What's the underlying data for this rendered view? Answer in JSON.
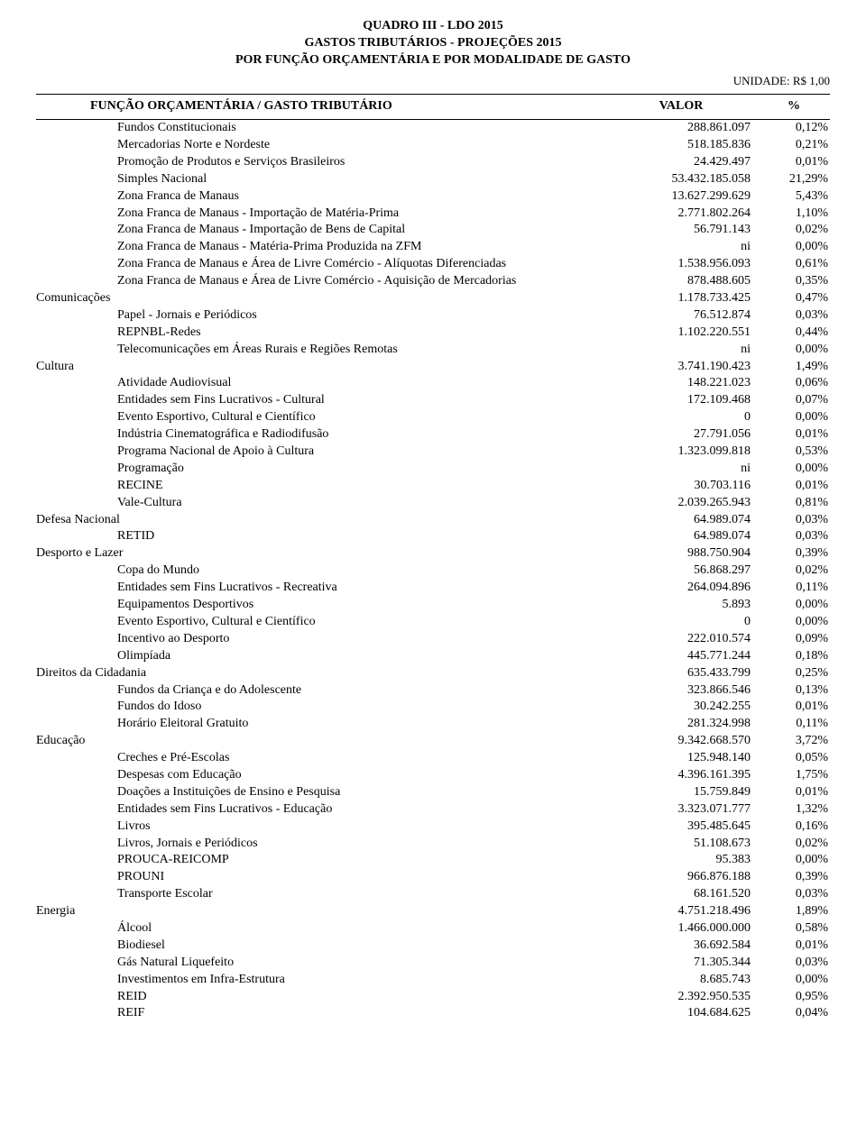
{
  "header": {
    "line1": "QUADRO III - LDO 2015",
    "line2": "GASTOS TRIBUTÁRIOS - PROJEÇÕES 2015",
    "line3": "POR FUNÇÃO ORÇAMENTÁRIA E POR MODALIDADE DE GASTO",
    "unit": "UNIDADE: R$ 1,00"
  },
  "columns": {
    "name": "FUNÇÃO ORÇAMENTÁRIA / GASTO TRIBUTÁRIO",
    "value": "VALOR",
    "pct": "%"
  },
  "rows": [
    {
      "indent": 1,
      "name": "Fundos Constitucionais",
      "value": "288.861.097",
      "pct": "0,12%"
    },
    {
      "indent": 1,
      "name": "Mercadorias Norte e Nordeste",
      "value": "518.185.836",
      "pct": "0,21%"
    },
    {
      "indent": 1,
      "name": "Promoção de Produtos e Serviços Brasileiros",
      "value": "24.429.497",
      "pct": "0,01%"
    },
    {
      "indent": 1,
      "name": "Simples Nacional",
      "value": "53.432.185.058",
      "pct": "21,29%"
    },
    {
      "indent": 1,
      "name": "Zona Franca de Manaus",
      "value": "13.627.299.629",
      "pct": "5,43%"
    },
    {
      "indent": 1,
      "name": "Zona Franca de Manaus  - Importação de Matéria-Prima",
      "value": "2.771.802.264",
      "pct": "1,10%"
    },
    {
      "indent": 1,
      "name": "Zona Franca de Manaus - Importação de Bens de Capital",
      "value": "56.791.143",
      "pct": "0,02%"
    },
    {
      "indent": 1,
      "name": "Zona Franca de Manaus - Matéria-Prima Produzida na ZFM",
      "value": "ni",
      "pct": "0,00%"
    },
    {
      "indent": 1,
      "name": "Zona Franca de Manaus e Área de Livre Comércio - Alíquotas Diferenciadas",
      "value": "1.538.956.093",
      "pct": "0,61%"
    },
    {
      "indent": 1,
      "name": "Zona Franca de Manaus e Área de Livre Comércio - Aquisição de Mercadorias",
      "value": "878.488.605",
      "pct": "0,35%"
    },
    {
      "indent": 0,
      "name": "Comunicações",
      "value": "1.178.733.425",
      "pct": "0,47%"
    },
    {
      "indent": 1,
      "name": "Papel - Jornais e Periódicos",
      "value": "76.512.874",
      "pct": "0,03%"
    },
    {
      "indent": 1,
      "name": "REPNBL-Redes",
      "value": "1.102.220.551",
      "pct": "0,44%"
    },
    {
      "indent": 1,
      "name": "Telecomunicações em Áreas Rurais e Regiões Remotas",
      "value": "ni",
      "pct": "0,00%"
    },
    {
      "indent": 0,
      "name": "Cultura",
      "value": "3.741.190.423",
      "pct": "1,49%"
    },
    {
      "indent": 1,
      "name": "Atividade Audiovisual",
      "value": "148.221.023",
      "pct": "0,06%"
    },
    {
      "indent": 1,
      "name": "Entidades sem Fins Lucrativos - Cultural",
      "value": "172.109.468",
      "pct": "0,07%"
    },
    {
      "indent": 1,
      "name": "Evento Esportivo, Cultural e Científico",
      "value": "0",
      "pct": "0,00%"
    },
    {
      "indent": 1,
      "name": "Indústria Cinematográfica e Radiodifusão",
      "value": "27.791.056",
      "pct": "0,01%"
    },
    {
      "indent": 1,
      "name": "Programa Nacional de Apoio à Cultura",
      "value": "1.323.099.818",
      "pct": "0,53%"
    },
    {
      "indent": 1,
      "name": "Programação",
      "value": "ni",
      "pct": "0,00%"
    },
    {
      "indent": 1,
      "name": "RECINE",
      "value": "30.703.116",
      "pct": "0,01%"
    },
    {
      "indent": 1,
      "name": "Vale-Cultura",
      "value": "2.039.265.943",
      "pct": "0,81%"
    },
    {
      "indent": 0,
      "name": "Defesa Nacional",
      "value": "64.989.074",
      "pct": "0,03%"
    },
    {
      "indent": 1,
      "name": "RETID",
      "value": "64.989.074",
      "pct": "0,03%"
    },
    {
      "indent": 0,
      "name": "Desporto e Lazer",
      "value": "988.750.904",
      "pct": "0,39%"
    },
    {
      "indent": 1,
      "name": "Copa do Mundo",
      "value": "56.868.297",
      "pct": "0,02%"
    },
    {
      "indent": 1,
      "name": "Entidades sem Fins Lucrativos - Recreativa",
      "value": "264.094.896",
      "pct": "0,11%"
    },
    {
      "indent": 1,
      "name": "Equipamentos Desportivos",
      "value": "5.893",
      "pct": "0,00%"
    },
    {
      "indent": 1,
      "name": "Evento Esportivo, Cultural e Científico",
      "value": "0",
      "pct": "0,00%"
    },
    {
      "indent": 1,
      "name": "Incentivo ao Desporto",
      "value": "222.010.574",
      "pct": "0,09%"
    },
    {
      "indent": 1,
      "name": "Olimpíada",
      "value": "445.771.244",
      "pct": "0,18%"
    },
    {
      "indent": 0,
      "name": "Direitos da Cidadania",
      "value": "635.433.799",
      "pct": "0,25%"
    },
    {
      "indent": 1,
      "name": "Fundos da Criança e do Adolescente",
      "value": "323.866.546",
      "pct": "0,13%"
    },
    {
      "indent": 1,
      "name": "Fundos do Idoso",
      "value": "30.242.255",
      "pct": "0,01%"
    },
    {
      "indent": 1,
      "name": "Horário Eleitoral Gratuito",
      "value": "281.324.998",
      "pct": "0,11%"
    },
    {
      "indent": 0,
      "name": "Educação",
      "value": "9.342.668.570",
      "pct": "3,72%"
    },
    {
      "indent": 1,
      "name": "Creches e Pré-Escolas",
      "value": "125.948.140",
      "pct": "0,05%"
    },
    {
      "indent": 1,
      "name": "Despesas com Educação",
      "value": "4.396.161.395",
      "pct": "1,75%"
    },
    {
      "indent": 1,
      "name": "Doações a Instituições de Ensino e Pesquisa",
      "value": "15.759.849",
      "pct": "0,01%"
    },
    {
      "indent": 1,
      "name": "Entidades sem Fins Lucrativos - Educação",
      "value": "3.323.071.777",
      "pct": "1,32%"
    },
    {
      "indent": 1,
      "name": "Livros",
      "value": "395.485.645",
      "pct": "0,16%"
    },
    {
      "indent": 1,
      "name": "Livros, Jornais e Periódicos",
      "value": "51.108.673",
      "pct": "0,02%"
    },
    {
      "indent": 1,
      "name": "PROUCA-REICOMP",
      "value": "95.383",
      "pct": "0,00%"
    },
    {
      "indent": 1,
      "name": "PROUNI",
      "value": "966.876.188",
      "pct": "0,39%"
    },
    {
      "indent": 1,
      "name": "Transporte Escolar",
      "value": "68.161.520",
      "pct": "0,03%"
    },
    {
      "indent": 0,
      "name": "Energia",
      "value": "4.751.218.496",
      "pct": "1,89%"
    },
    {
      "indent": 1,
      "name": "Álcool",
      "value": "1.466.000.000",
      "pct": "0,58%"
    },
    {
      "indent": 1,
      "name": "Biodiesel",
      "value": "36.692.584",
      "pct": "0,01%"
    },
    {
      "indent": 1,
      "name": "Gás Natural Liquefeito",
      "value": "71.305.344",
      "pct": "0,03%"
    },
    {
      "indent": 1,
      "name": "Investimentos em Infra-Estrutura",
      "value": "8.685.743",
      "pct": "0,00%"
    },
    {
      "indent": 1,
      "name": "REID",
      "value": "2.392.950.535",
      "pct": "0,95%"
    },
    {
      "indent": 1,
      "name": "REIF",
      "value": "104.684.625",
      "pct": "0,04%"
    }
  ]
}
